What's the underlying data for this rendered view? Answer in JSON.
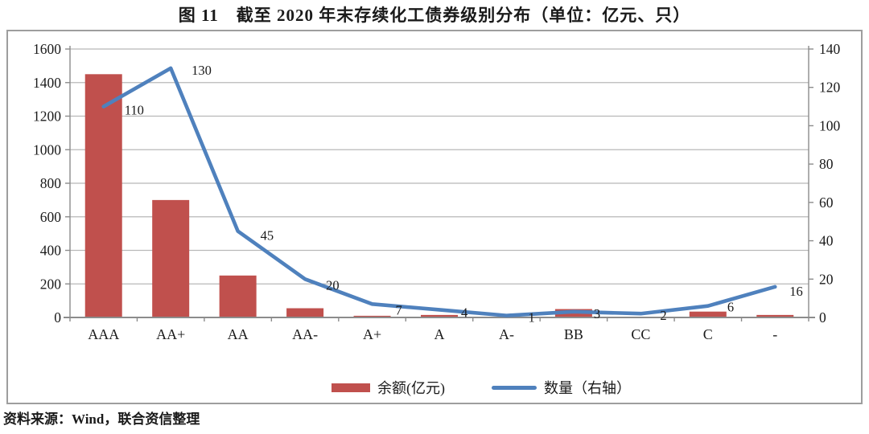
{
  "figure": {
    "title": "图 11　截至 2020 年末存续化工债券级别分布（单位：亿元、只）",
    "source": "资料来源：Wind，联合资信整理"
  },
  "chart_data": {
    "type": "combo-bar-line",
    "categories": [
      "AAA",
      "AA+",
      "AA",
      "AA-",
      "A+",
      "A",
      "A-",
      "BB",
      "CC",
      "C",
      "-"
    ],
    "series": [
      {
        "name": "余额(亿元)",
        "type": "bar",
        "axis": "left",
        "color": "#C0504D",
        "values": [
          1450,
          700,
          250,
          55,
          10,
          15,
          0,
          50,
          0,
          35,
          15
        ]
      },
      {
        "name": "数量（右轴）",
        "type": "line",
        "axis": "right",
        "color": "#4F81BD",
        "data_labels": true,
        "values": [
          110,
          130,
          45,
          20,
          7,
          4,
          1,
          3,
          2,
          6,
          16
        ]
      }
    ],
    "left_axis": {
      "min": 0,
      "max": 1600,
      "step": 200,
      "ticks": [
        0,
        200,
        400,
        600,
        800,
        1000,
        1200,
        1400,
        1600
      ]
    },
    "right_axis": {
      "min": 0,
      "max": 140,
      "step": 20,
      "ticks": [
        0,
        20,
        40,
        60,
        80,
        100,
        120,
        140
      ]
    },
    "grid": true,
    "legend_position": "bottom-center"
  },
  "style": {
    "bar_color": "#C0504D",
    "line_color": "#4F81BD",
    "grid_color": "#b8b8b8",
    "axis_color": "#8c8c8c",
    "text_color": "#1a1a1a",
    "frame_border_color": "#9e9e9e"
  }
}
